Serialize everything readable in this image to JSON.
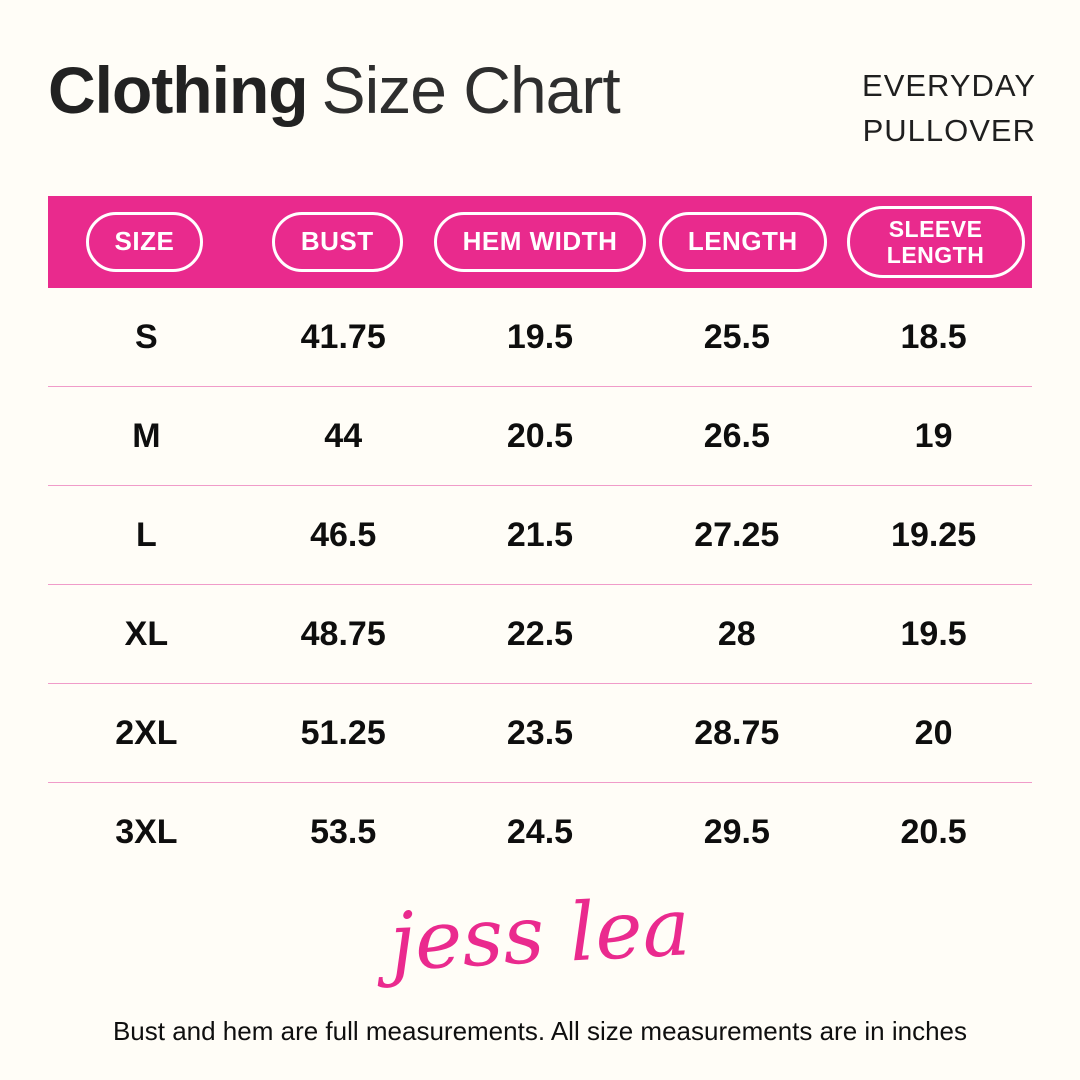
{
  "page": {
    "title_bold": "Clothing",
    "title_light": "Size Chart",
    "product_line1": "EVERYDAY",
    "product_line2": "PULLOVER",
    "brand": "jess lea",
    "footer": "Bust and hem are full measurements. All size measurements are in inches"
  },
  "colors": {
    "background": "#FFFDF7",
    "header_pink": "#E92A8D",
    "separator_pink": "#F09BC9",
    "logo_pink": "#EA2A8E",
    "text": "#111111"
  },
  "chart_data": {
    "type": "table",
    "title": "Clothing Size Chart",
    "subtitle": "Everyday Pullover",
    "units": "inches",
    "columns": [
      "SIZE",
      "BUST",
      "HEM WIDTH",
      "LENGTH",
      "SLEEVE LENGTH"
    ],
    "rows": [
      [
        "S",
        "41.75",
        "19.5",
        "25.5",
        "18.5"
      ],
      [
        "M",
        "44",
        "20.5",
        "26.5",
        "19"
      ],
      [
        "L",
        "46.5",
        "21.5",
        "27.25",
        "19.25"
      ],
      [
        "XL",
        "48.75",
        "22.5",
        "28",
        "19.5"
      ],
      [
        "2XL",
        "51.25",
        "23.5",
        "28.75",
        "20"
      ],
      [
        "3XL",
        "53.5",
        "24.5",
        "29.5",
        "20.5"
      ]
    ]
  }
}
